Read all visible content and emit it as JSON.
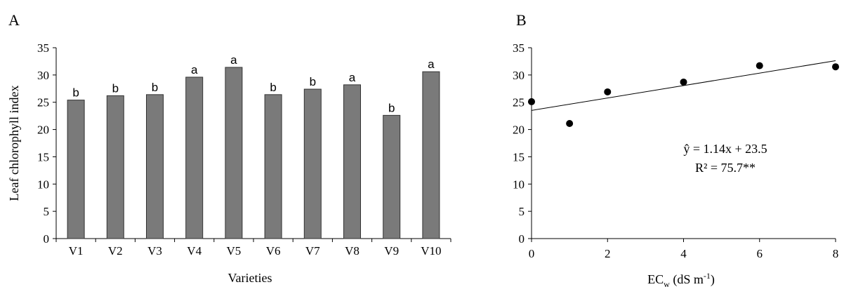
{
  "chart_data": [
    {
      "panel_label": "A",
      "type": "bar",
      "ylabel": "Leaf chlorophyll index",
      "xlabel": "Varieties",
      "ylim": [
        0,
        35
      ],
      "yticks": [
        0,
        5,
        10,
        15,
        20,
        25,
        30,
        35
      ],
      "categories": [
        "V1",
        "V2",
        "V3",
        "V4",
        "V5",
        "V6",
        "V7",
        "V8",
        "V9",
        "V10"
      ],
      "values": [
        25.4,
        26.2,
        26.4,
        29.6,
        31.4,
        26.4,
        27.4,
        28.2,
        22.6,
        30.6
      ],
      "letters": [
        "b",
        "b",
        "b",
        "a",
        "a",
        "b",
        "b",
        "a",
        "b",
        "a"
      ],
      "bar_color": "#7a7a7a",
      "grid": false
    },
    {
      "panel_label": "B",
      "type": "scatter",
      "xlabel_main": "EC",
      "xlabel_sub": "w",
      "xlabel_units": " (dS m",
      "xlabel_sup": "-1",
      "xlabel_close": ")",
      "xlim": [
        0,
        8
      ],
      "ylim": [
        0,
        35
      ],
      "xticks": [
        0,
        2,
        4,
        6,
        8
      ],
      "yticks": [
        0,
        5,
        10,
        15,
        20,
        25,
        30,
        35
      ],
      "x": [
        0,
        1,
        2,
        4,
        6,
        8
      ],
      "y": [
        25.1,
        21.1,
        26.9,
        28.7,
        31.7,
        31.5
      ],
      "fit": {
        "slope": 1.14,
        "intercept": 23.5
      },
      "equation": "ŷ = 1.14x + 23.5",
      "r2": "R² = 75.7**",
      "grid": false
    }
  ]
}
